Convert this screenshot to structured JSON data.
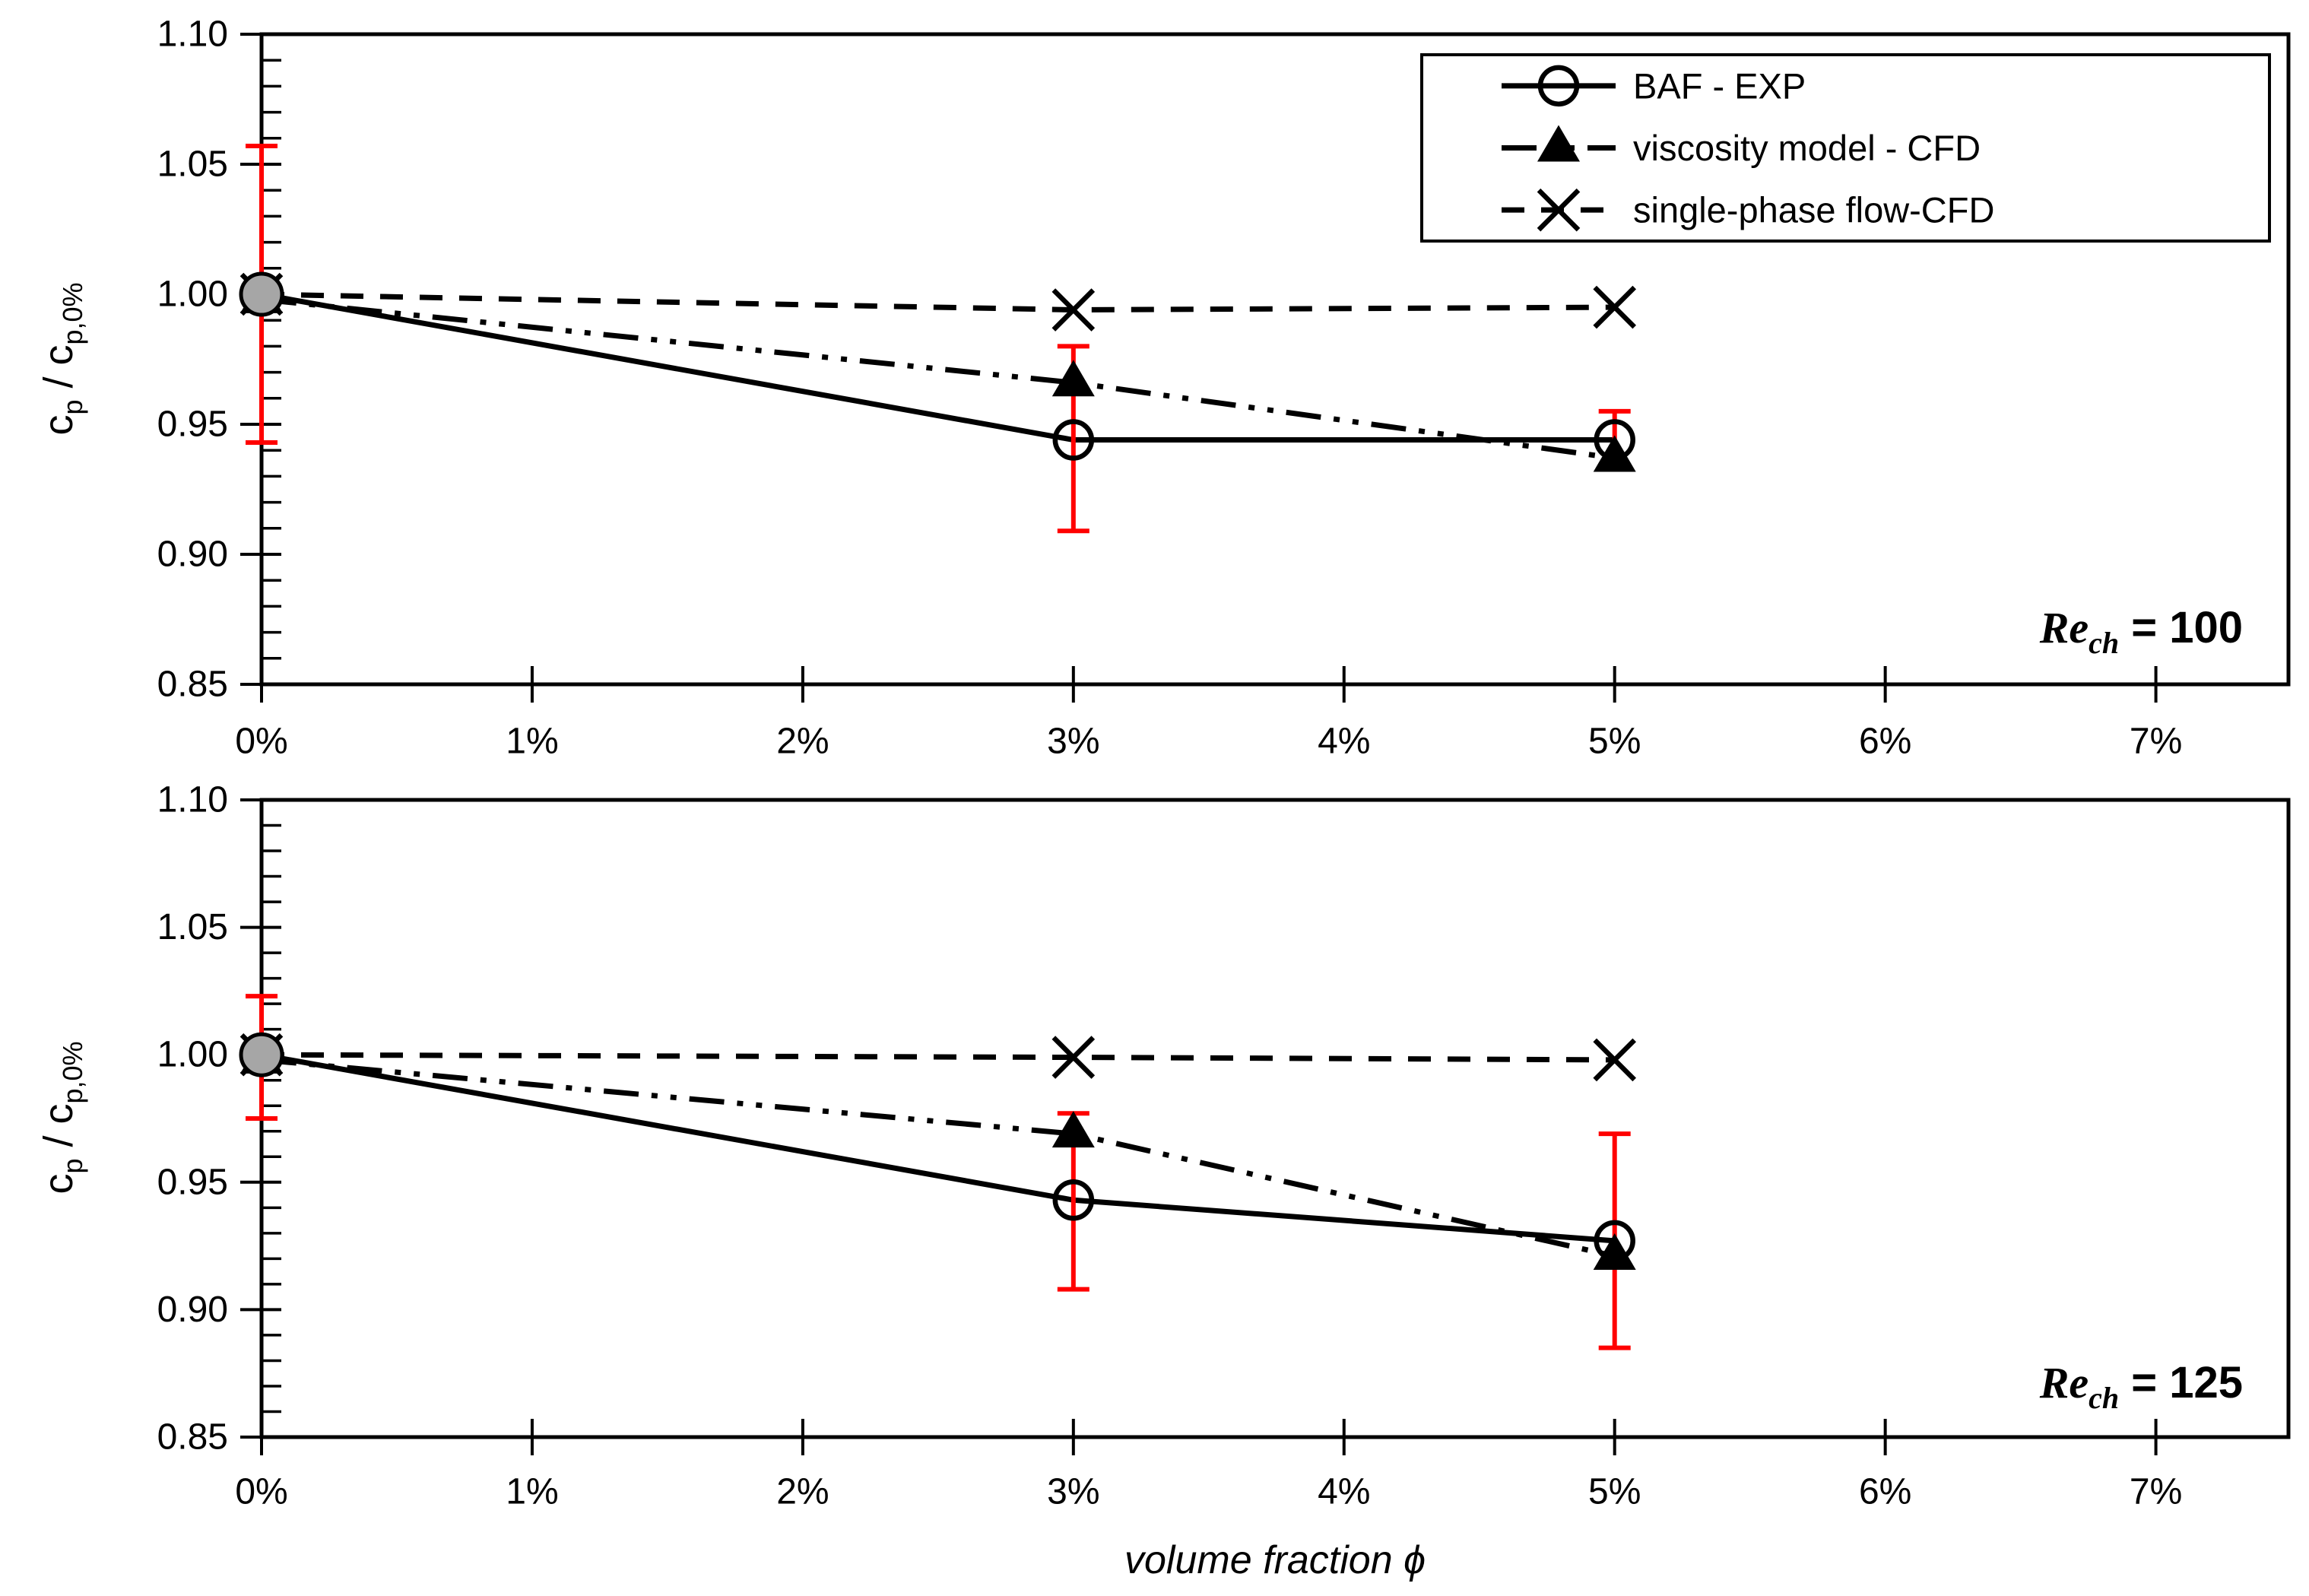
{
  "page": {
    "background": "#ffffff"
  },
  "colors": {
    "series": "#000000",
    "error_bar": "#ff0000",
    "zero_pct_marker_fill": "#a6a6a6",
    "frame": "#000000",
    "background": "#ffffff"
  },
  "axis_titles": {
    "x": "volume fraction ϕ",
    "y_text": "cp / cp,0%",
    "y_parts": [
      {
        "t": "c",
        "sub": false
      },
      {
        "t": "p",
        "sub": true
      },
      {
        "t": " / c",
        "sub": false
      },
      {
        "t": "p,0%",
        "sub": true
      }
    ]
  },
  "legend": {
    "position": "top-right",
    "entries": [
      {
        "label": "BAF - EXP",
        "marker": "circle",
        "line": "solid"
      },
      {
        "label": "viscosity model - CFD",
        "marker": "triangle",
        "line": "dash-dot-dot"
      },
      {
        "label": "single-phase flow-CFD",
        "marker": "x",
        "line": "dashed"
      }
    ]
  },
  "chart_data": [
    {
      "type": "line",
      "title": "Re_ch = 100",
      "annotation": {
        "main": "Re",
        "sub": "ch",
        "rest": " = 100"
      },
      "xlabel": "volume fraction ϕ",
      "ylabel": "cp / cp,0%",
      "x": [
        0,
        3,
        5
      ],
      "xlim": [
        0,
        7.49
      ],
      "ylim": [
        0.85,
        1.1
      ],
      "x_tick_values": [
        0,
        1,
        2,
        3,
        4,
        5,
        6,
        7
      ],
      "x_tick_labels": [
        "0%",
        "1%",
        "2%",
        "3%",
        "4%",
        "5%",
        "6%",
        "7%"
      ],
      "y_tick_values": [
        0.85,
        0.9,
        0.95,
        1.0,
        1.05,
        1.1
      ],
      "y_tick_labels": [
        "0.85",
        "0.90",
        "0.95",
        "1.00",
        "1.05",
        "1.10"
      ],
      "y_minor_step": 0.01,
      "grid": false,
      "series": [
        {
          "name": "single-phase flow-CFD",
          "marker": "x",
          "line": "dashed",
          "values": [
            1.0,
            0.994,
            0.995
          ]
        },
        {
          "name": "viscosity model - CFD",
          "marker": "triangle",
          "line": "dash-dot-dot",
          "values": [
            0.998,
            0.966,
            0.937
          ]
        },
        {
          "name": "BAF - EXP",
          "marker": "circle",
          "line": "solid",
          "values": [
            1.0,
            0.944,
            0.944
          ],
          "error_bars": {
            "upper": [
              1.057,
              0.98,
              0.955
            ],
            "lower": [
              0.943,
              0.909,
              0.933
            ]
          }
        }
      ]
    },
    {
      "type": "line",
      "title": "Re_ch = 125",
      "annotation": {
        "main": "Re",
        "sub": "ch",
        "rest": " = 125"
      },
      "xlabel": "volume fraction ϕ",
      "ylabel": "cp / cp,0%",
      "x": [
        0,
        3,
        5
      ],
      "xlim": [
        0,
        7.49
      ],
      "ylim": [
        0.85,
        1.1
      ],
      "x_tick_values": [
        0,
        1,
        2,
        3,
        4,
        5,
        6,
        7
      ],
      "x_tick_labels": [
        "0%",
        "1%",
        "2%",
        "3%",
        "4%",
        "5%",
        "6%",
        "7%"
      ],
      "y_tick_values": [
        0.85,
        0.9,
        0.95,
        1.0,
        1.05,
        1.1
      ],
      "y_tick_labels": [
        "0.85",
        "0.90",
        "0.95",
        "1.00",
        "1.05",
        "1.10"
      ],
      "y_minor_step": 0.01,
      "grid": false,
      "series": [
        {
          "name": "single-phase flow-CFD",
          "marker": "x",
          "line": "dashed",
          "values": [
            1.0,
            0.999,
            0.998
          ]
        },
        {
          "name": "viscosity model - CFD",
          "marker": "triangle",
          "line": "dash-dot-dot",
          "values": [
            0.998,
            0.969,
            0.921
          ]
        },
        {
          "name": "BAF - EXP",
          "marker": "circle",
          "line": "solid",
          "values": [
            1.0,
            0.943,
            0.927
          ],
          "error_bars": {
            "upper": [
              1.023,
              0.977,
              0.969
            ],
            "lower": [
              0.975,
              0.908,
              0.885
            ]
          }
        }
      ]
    }
  ]
}
